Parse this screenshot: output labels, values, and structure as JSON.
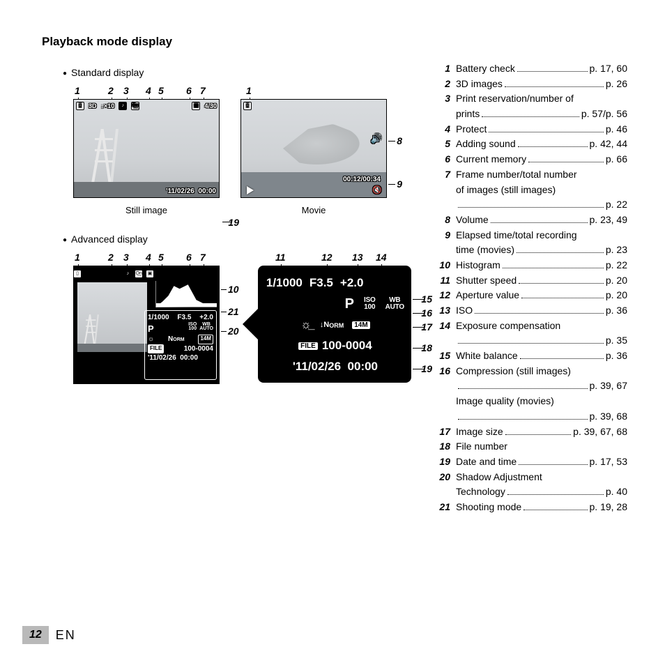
{
  "title": "Playback mode display",
  "sections": {
    "standard": "Standard display",
    "advanced": "Advanced display"
  },
  "captions": {
    "still": "Still image",
    "movie": "Movie"
  },
  "topbar_still": {
    "l1": "▯",
    "l2": "3D",
    "l3": "↓×10",
    "l4": "♪",
    "l5": "O͟n",
    "r1": "▣",
    "r2": "4/30"
  },
  "still": {
    "datetime": "'11/02/26  00:00"
  },
  "movie": {
    "elapsed": "00:12/00:34",
    "vol_icon": "🔊",
    "mute_icon": "🔇"
  },
  "adv_info": {
    "shutter": "1/1000",
    "aperture": "F3.5",
    "ev": "+2.0",
    "mode": "P",
    "iso_l1": "ISO",
    "iso_l2": "100",
    "wb_l1": "WB",
    "wb_l2": "AUTO",
    "shadow": "☼",
    "norm_n": "N",
    "norm_rest": "ORM",
    "size": "14M",
    "file_badge": "FILE",
    "file": "100-0004",
    "datetime": "'11/02/26  00:00"
  },
  "detail": {
    "shutter": "1/1000",
    "aperture": "F3.5",
    "ev": "+2.0",
    "mode": "P",
    "iso_l1": "ISO",
    "iso_l2": "100",
    "wb_l1": "WB",
    "wb_l2": "AUTO",
    "shadow": "☼̲",
    "flash": "↓",
    "norm_n": "N",
    "norm_rest": "ORM",
    "size": "14M",
    "file_badge": "FILE",
    "file": "100-0004",
    "datetime": "'11/02/26  00:00"
  },
  "callouts_std": {
    "c1": "1",
    "c2": "2",
    "c3": "3",
    "c4": "4",
    "c5": "5",
    "c6": "6",
    "c7": "7",
    "c8": "8",
    "c9": "9",
    "c19": "19"
  },
  "callouts_mov": {
    "c1": "1"
  },
  "callouts_adv_top": {
    "c1": "1",
    "c2": "2",
    "c3": "3",
    "c4": "4",
    "c5": "5",
    "c6": "6",
    "c7": "7"
  },
  "callouts_detail_top": {
    "c11": "11",
    "c12": "12",
    "c13": "13",
    "c14": "14"
  },
  "callouts_sides": {
    "c10": "10",
    "c21": "21",
    "c20": "20",
    "c15": "15",
    "c16": "16",
    "c17": "17",
    "c18": "18",
    "c19": "19"
  },
  "refs": [
    {
      "n": "1",
      "label": "Battery check",
      "page": "p. 17, 60"
    },
    {
      "n": "2",
      "label": "3D images",
      "page": "p. 26"
    },
    {
      "n": "3",
      "label": "Print reservation/number of"
    },
    {
      "sub": true,
      "label": "prints",
      "page": "p. 57/p. 56"
    },
    {
      "n": "4",
      "label": "Protect",
      "page": "p. 46"
    },
    {
      "n": "5",
      "label": "Adding sound",
      "page": "p. 42, 44"
    },
    {
      "n": "6",
      "label": "Current memory",
      "page": "p. 66"
    },
    {
      "n": "7",
      "label": "Frame number/total number"
    },
    {
      "sub": true,
      "label": "of images (still images)"
    },
    {
      "sub": true,
      "label": "",
      "page": "p. 22"
    },
    {
      "n": "8",
      "label": "Volume",
      "page": "p. 23, 49"
    },
    {
      "n": "9",
      "label": "Elapsed time/total recording"
    },
    {
      "sub": true,
      "label": "time (movies)",
      "page": "p. 23"
    },
    {
      "n": "10",
      "label": "Histogram",
      "page": "p. 22"
    },
    {
      "n": "11",
      "label": "Shutter speed",
      "page": "p. 20"
    },
    {
      "n": "12",
      "label": "Aperture value",
      "page": "p. 20"
    },
    {
      "n": "13",
      "label": "ISO",
      "page": "p. 36"
    },
    {
      "n": "14",
      "label": "Exposure compensation"
    },
    {
      "sub": true,
      "label": "",
      "page": "p. 35"
    },
    {
      "n": "15",
      "label": "White balance",
      "page": "p. 36"
    },
    {
      "n": "16",
      "label": "Compression (still images)"
    },
    {
      "sub": true,
      "label": "",
      "page": "p. 39, 67"
    },
    {
      "sub": true,
      "label": "Image quality (movies)"
    },
    {
      "sub": true,
      "label": "",
      "page": "p. 39, 68"
    },
    {
      "n": "17",
      "label": "Image size",
      "page": "p. 39, 67, 68"
    },
    {
      "n": "18",
      "label": "File number"
    },
    {
      "n": "19",
      "label": "Date and time",
      "page": "p. 17, 53"
    },
    {
      "n": "20",
      "label": "Shadow Adjustment"
    },
    {
      "sub": true,
      "label": "Technology",
      "page": "p. 40"
    },
    {
      "n": "21",
      "label": "Shooting mode",
      "page": "p. 19, 28"
    }
  ],
  "footer": {
    "page": "12",
    "lang": "EN"
  }
}
